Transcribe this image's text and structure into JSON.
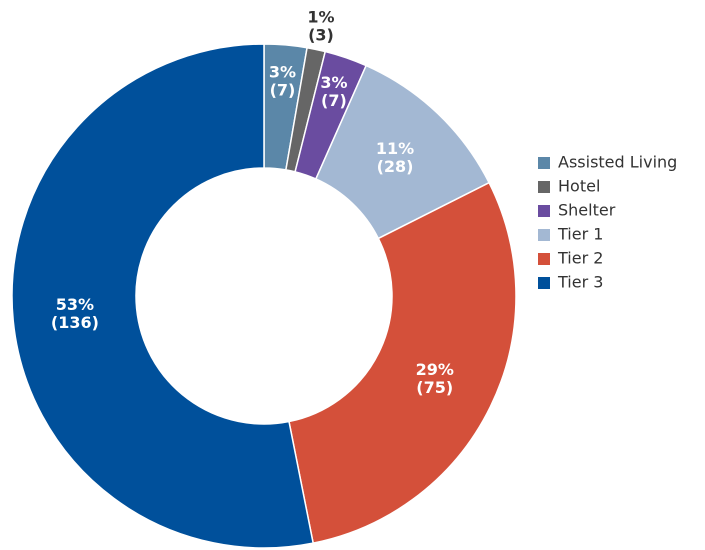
{
  "chart_data": {
    "type": "donut",
    "categories": [
      "Assisted Living",
      "Hotel",
      "Shelter",
      "Tier 1",
      "Tier 2",
      "Tier 3"
    ],
    "values": [
      7,
      3,
      7,
      28,
      75,
      136
    ],
    "value_labels": [
      "(7)",
      "(3)",
      "(7)",
      "(28)",
      "(75)",
      "(136)"
    ],
    "percent_labels": [
      "3%",
      "1%",
      "3%",
      "11%",
      "29%",
      "53%"
    ],
    "colors": [
      "#5b87a8",
      "#666666",
      "#6a4ca0",
      "#a3b8d3",
      "#d4503a",
      "#00509b"
    ],
    "legend": "right"
  }
}
